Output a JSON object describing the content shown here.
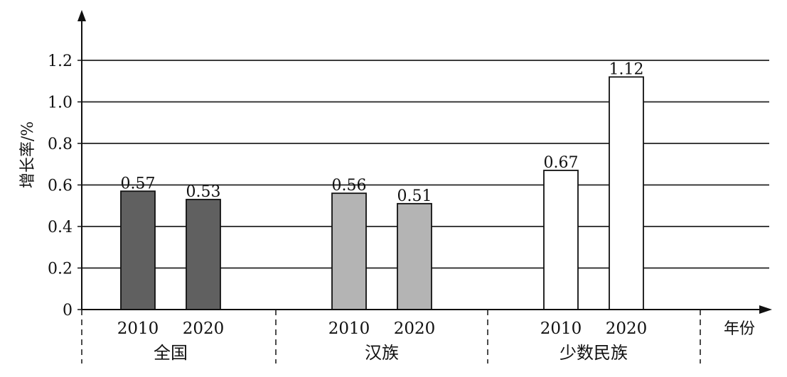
{
  "chart_data": {
    "type": "bar",
    "ylabel": "增长率/%",
    "xlabel": "年份",
    "ylim": [
      0,
      1.2
    ],
    "yticks": [
      "0",
      "0.2",
      "0.4",
      "0.6",
      "0.8",
      "1.0",
      "1.2"
    ],
    "grid": true,
    "groups": [
      {
        "name": "全国",
        "bars": [
          {
            "year": "2010",
            "value": 0.57,
            "label": "0.57",
            "color": "#606060"
          },
          {
            "year": "2020",
            "value": 0.53,
            "label": "0.53",
            "color": "#606060"
          }
        ]
      },
      {
        "name": "汉族",
        "bars": [
          {
            "year": "2010",
            "value": 0.56,
            "label": "0.56",
            "color": "#b4b4b4"
          },
          {
            "year": "2020",
            "value": 0.51,
            "label": "0.51",
            "color": "#b4b4b4"
          }
        ]
      },
      {
        "name": "少数民族",
        "bars": [
          {
            "year": "2010",
            "value": 0.67,
            "label": "0.67",
            "color": "#ffffff"
          },
          {
            "year": "2020",
            "value": 1.12,
            "label": "1.12",
            "color": "#ffffff"
          }
        ]
      }
    ]
  }
}
